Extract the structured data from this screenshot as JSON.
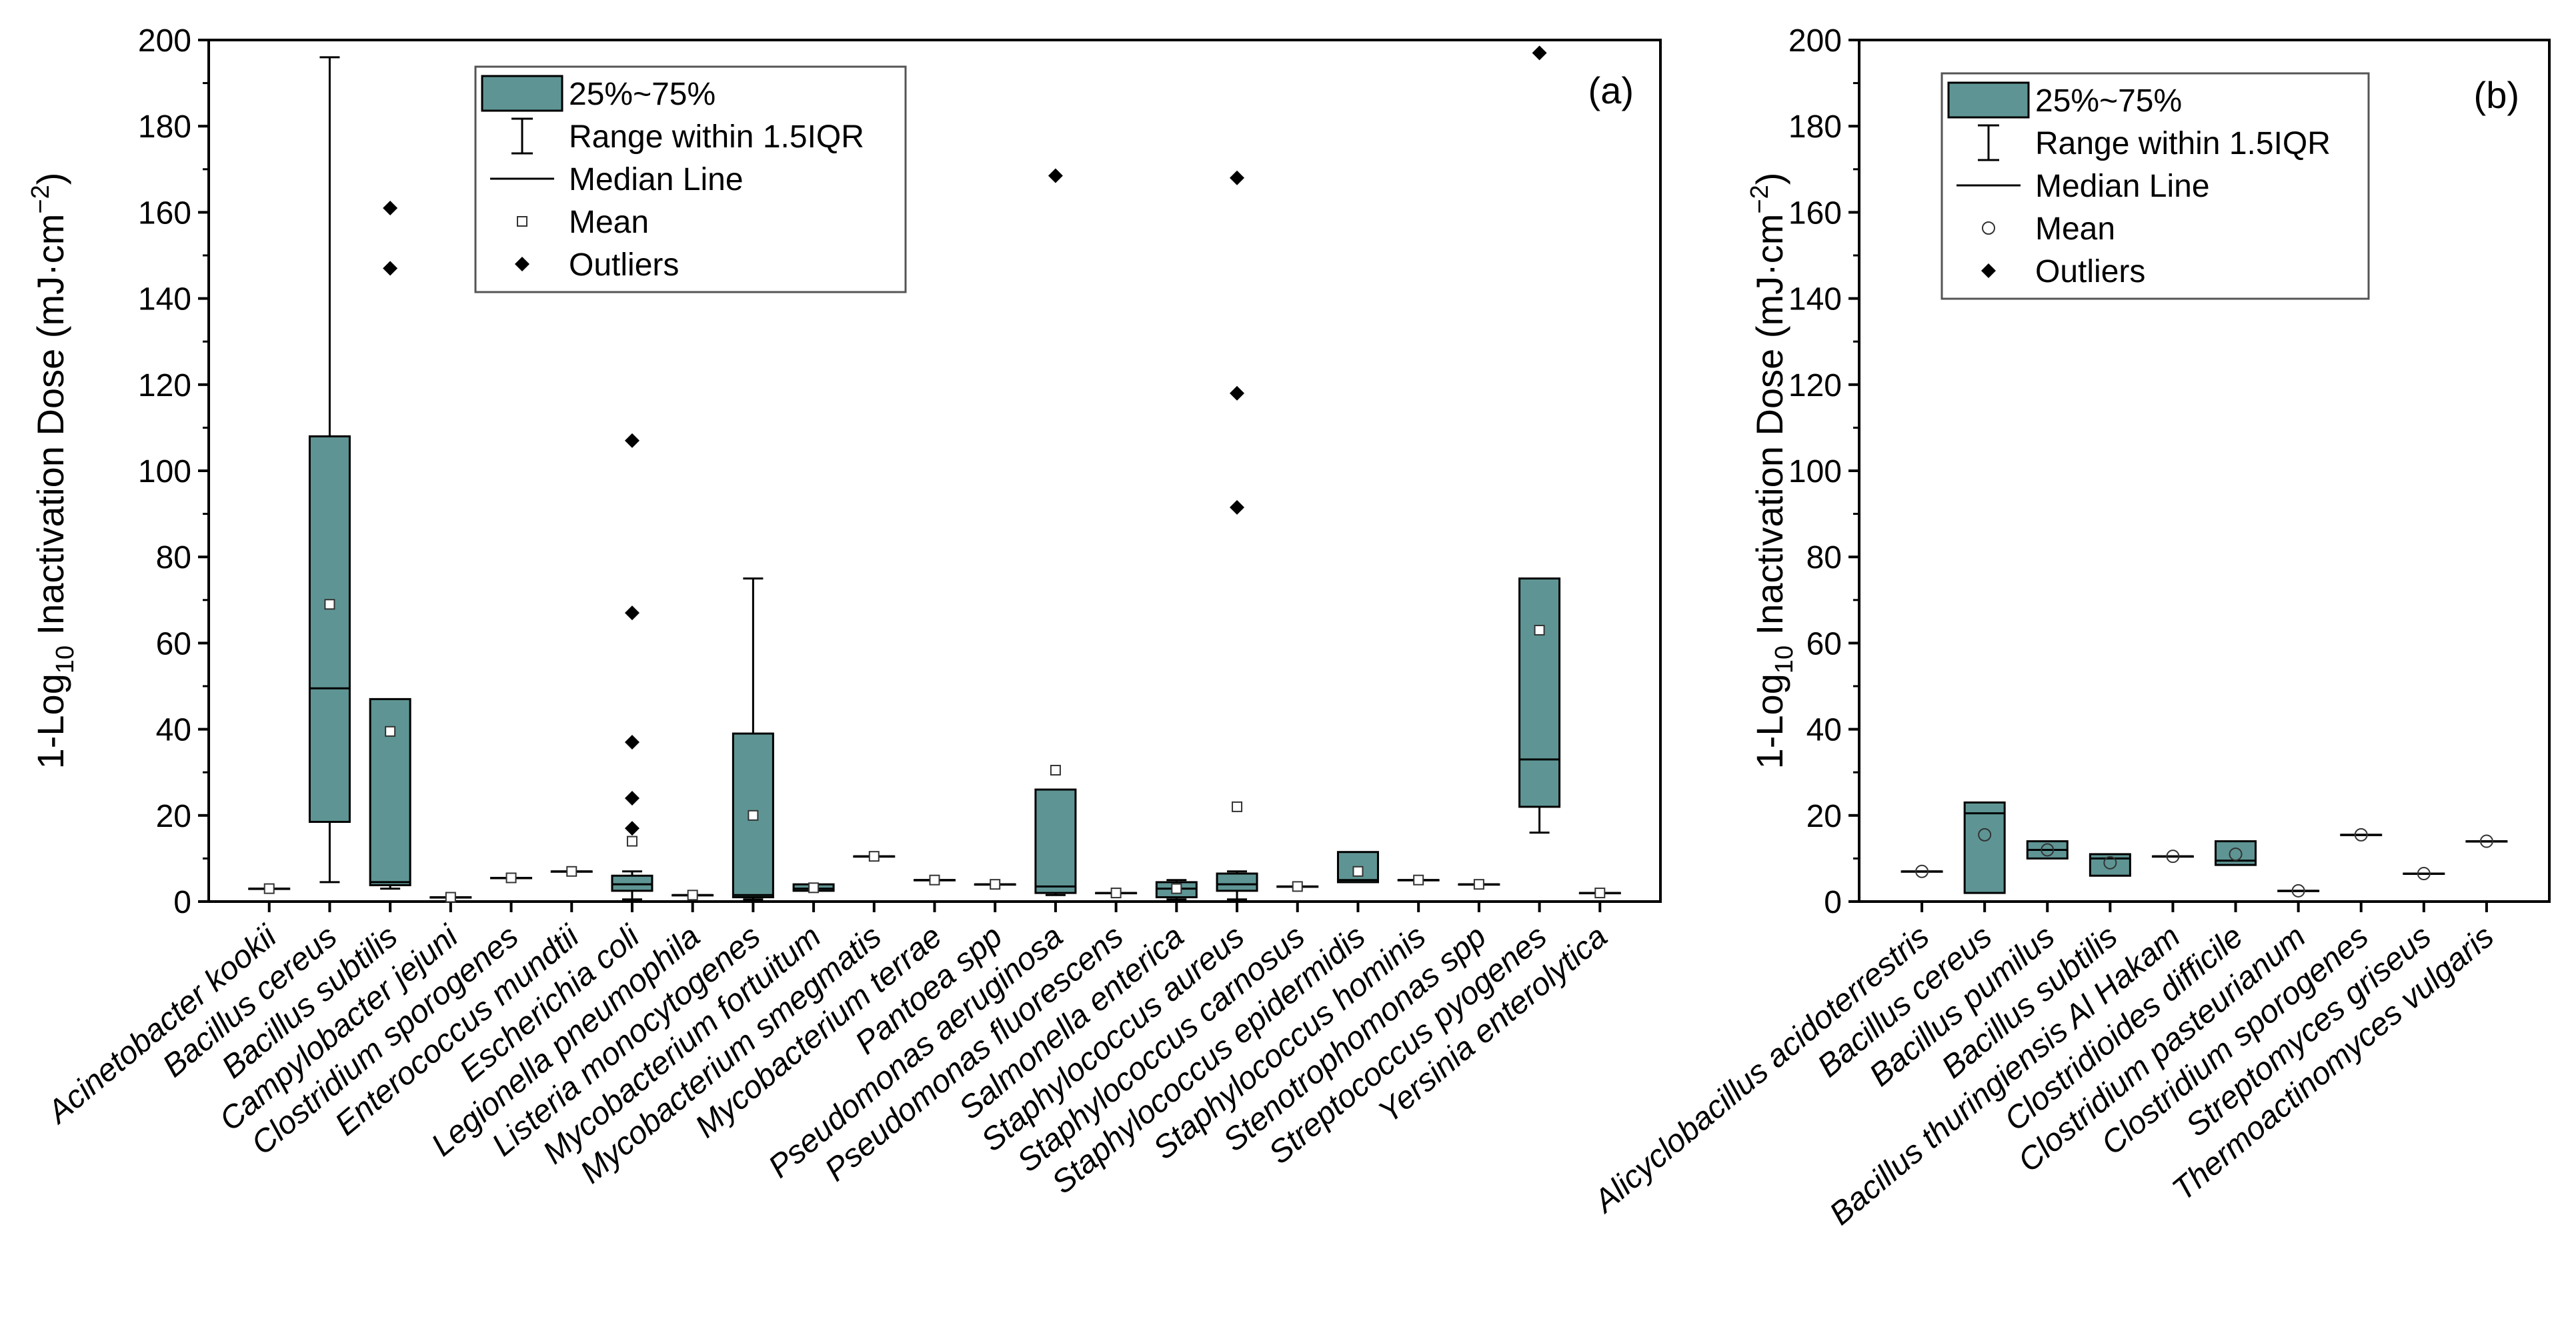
{
  "colors": {
    "box_fill": "#5e9594",
    "box_stroke": "#000000",
    "axis": "#000000",
    "mean_marker_fill": "#ffffff",
    "outlier": "#000000"
  },
  "chart_data": [
    {
      "type": "box",
      "panel_label": "(a)",
      "ylabel_main": "1-Log",
      "ylabel_sub": "10",
      "ylabel_rest": " Inactivation Dose (mJ·cm",
      "ylabel_sup": "−2",
      "ylabel_close": ")",
      "ylim": [
        0,
        200
      ],
      "yticks": [
        0,
        20,
        40,
        60,
        80,
        100,
        120,
        140,
        160,
        180,
        200
      ],
      "mean_marker": "square",
      "n_slots": 24,
      "legend": {
        "box": "25%~75%",
        "whisker": "Range within 1.5IQR",
        "median": "Median Line",
        "mean": "Mean",
        "outliers": "Outliers"
      },
      "categories": [
        "Acinetobacter kookii",
        "Bacillus cereus",
        "Bacillus subtilis",
        "Campylobacter jejuni",
        "Clostridium sporogenes",
        "Enterococcus mundtii",
        "Escherichia coli",
        "Legionella pneumophila",
        "Listeria monocytogenes",
        "Mycobacterium fortuitum",
        "Mycobacterium smegmatis",
        "Mycobacterium terrae",
        "Pantoea spp",
        "Pseudomonas aeruginosa",
        "Pseudomonas fluorescens",
        "Salmonella enterica",
        "Staphylococcus aureus",
        "Staphylococcus carnosus",
        "Staphylococcus epidermidis",
        "Staphylococcus hominis",
        "Stenotrophomonas spp",
        "Streptococcus pyogenes",
        "Yersinia enterolytica"
      ],
      "boxes": [
        {
          "min": 3.0,
          "q1": 3.0,
          "median": 3.0,
          "q3": 3.0,
          "max": 3.0,
          "mean": 3.0,
          "outliers": []
        },
        {
          "min": 4.5,
          "q1": 18.5,
          "median": 49.5,
          "q3": 108,
          "max": 196,
          "mean": 69,
          "outliers": []
        },
        {
          "min": 3.0,
          "q1": 3.8,
          "median": 4.5,
          "q3": 47,
          "max": 47,
          "mean": 39.5,
          "outliers": [
            161,
            147
          ]
        },
        {
          "min": 1.0,
          "q1": 1.0,
          "median": 1.0,
          "q3": 1.0,
          "max": 1.0,
          "mean": 1.0,
          "outliers": []
        },
        {
          "min": 5.5,
          "q1": 5.5,
          "median": 5.5,
          "q3": 5.5,
          "max": 5.5,
          "mean": 5.5,
          "outliers": []
        },
        {
          "min": 7.0,
          "q1": 7.0,
          "median": 7.0,
          "q3": 7.0,
          "max": 7.0,
          "mean": 7.0,
          "outliers": []
        },
        {
          "min": 0.5,
          "q1": 2.5,
          "median": 4.0,
          "q3": 6.0,
          "max": 7.0,
          "mean": 14,
          "outliers": [
            107,
            67,
            37,
            24,
            17
          ]
        },
        {
          "min": 1.5,
          "q1": 1.5,
          "median": 1.5,
          "q3": 1.5,
          "max": 1.5,
          "mean": 1.5,
          "outliers": []
        },
        {
          "min": 0.5,
          "q1": 1.0,
          "median": 1.5,
          "q3": 39,
          "max": 75,
          "mean": 20,
          "outliers": []
        },
        {
          "min": 2.5,
          "q1": 2.5,
          "median": 3.0,
          "q3": 4.0,
          "max": 4.0,
          "mean": 3.2,
          "outliers": []
        },
        {
          "min": 10.5,
          "q1": 10.5,
          "median": 10.5,
          "q3": 10.5,
          "max": 10.5,
          "mean": 10.5,
          "outliers": []
        },
        {
          "min": 5.0,
          "q1": 5.0,
          "median": 5.0,
          "q3": 5.0,
          "max": 5.0,
          "mean": 5.0,
          "outliers": []
        },
        {
          "min": 4.0,
          "q1": 4.0,
          "median": 4.0,
          "q3": 4.0,
          "max": 4.0,
          "mean": 4.0,
          "outliers": []
        },
        {
          "min": 1.5,
          "q1": 2.0,
          "median": 3.5,
          "q3": 26,
          "max": 26,
          "mean": 30.5,
          "outliers": [
            168.5
          ]
        },
        {
          "min": 2.0,
          "q1": 2.0,
          "median": 2.0,
          "q3": 2.0,
          "max": 2.0,
          "mean": 2.0,
          "outliers": []
        },
        {
          "min": 0.5,
          "q1": 1.0,
          "median": 3.0,
          "q3": 4.5,
          "max": 5.0,
          "mean": 3.0,
          "outliers": []
        },
        {
          "min": 0.5,
          "q1": 2.5,
          "median": 4.0,
          "q3": 6.5,
          "max": 7.0,
          "mean": 22,
          "outliers": [
            168,
            118,
            91.5
          ]
        },
        {
          "min": 3.5,
          "q1": 3.5,
          "median": 3.5,
          "q3": 3.5,
          "max": 3.5,
          "mean": 3.5,
          "outliers": []
        },
        {
          "min": 4.5,
          "q1": 4.5,
          "median": 5.0,
          "q3": 11.5,
          "max": 11.5,
          "mean": 7.0,
          "outliers": []
        },
        {
          "min": 5.0,
          "q1": 5.0,
          "median": 5.0,
          "q3": 5.0,
          "max": 5.0,
          "mean": 5.0,
          "outliers": []
        },
        {
          "min": 4.0,
          "q1": 4.0,
          "median": 4.0,
          "q3": 4.0,
          "max": 4.0,
          "mean": 4.0,
          "outliers": []
        },
        {
          "min": 16,
          "q1": 22,
          "median": 33,
          "q3": 75,
          "max": 75,
          "mean": 63,
          "outliers": [
            197
          ]
        },
        {
          "min": 2.0,
          "q1": 2.0,
          "median": 2.0,
          "q3": 2.0,
          "max": 2.0,
          "mean": 2.0,
          "outliers": []
        }
      ]
    },
    {
      "type": "box",
      "panel_label": "(b)",
      "ylabel_main": "1-Log",
      "ylabel_sub": "10",
      "ylabel_rest": " Inactivation Dose (mJ·cm",
      "ylabel_sup": "−2",
      "ylabel_close": ")",
      "ylim": [
        0,
        200
      ],
      "yticks": [
        0,
        20,
        40,
        60,
        80,
        100,
        120,
        140,
        160,
        180,
        200
      ],
      "mean_marker": "circle",
      "n_slots": 11,
      "legend": {
        "box": "25%~75%",
        "whisker": "Range within 1.5IQR",
        "median": "Median Line",
        "mean": "Mean",
        "outliers": "Outliers"
      },
      "categories": [
        "Alicyclobacillus acidoterrestris",
        "Bacillus cereus",
        "Bacillus pumilus",
        "Bacillus subtilis",
        "Bacillus thuringiensis Al Hakam",
        "Clostridioides difficile",
        "Clostridium pasteurianum",
        "Clostridium sporogenes",
        "Streptomyces griseus",
        "Thermoactinomyces vulgaris"
      ],
      "boxes": [
        {
          "min": 7.0,
          "q1": 7.0,
          "median": 7.0,
          "q3": 7.0,
          "max": 7.0,
          "mean": 7.0,
          "outliers": []
        },
        {
          "min": 2.0,
          "q1": 2.0,
          "median": 20.5,
          "q3": 23,
          "max": 23,
          "mean": 15.5,
          "outliers": []
        },
        {
          "min": 10,
          "q1": 10,
          "median": 12,
          "q3": 14,
          "max": 14,
          "mean": 12,
          "outliers": []
        },
        {
          "min": 6.0,
          "q1": 6.0,
          "median": 10,
          "q3": 11,
          "max": 11,
          "mean": 9.0,
          "outliers": []
        },
        {
          "min": 10.5,
          "q1": 10.5,
          "median": 10.5,
          "q3": 10.5,
          "max": 10.5,
          "mean": 10.5,
          "outliers": []
        },
        {
          "min": 8.5,
          "q1": 8.5,
          "median": 9.5,
          "q3": 14,
          "max": 14,
          "mean": 11,
          "outliers": []
        },
        {
          "min": 2.5,
          "q1": 2.5,
          "median": 2.5,
          "q3": 2.5,
          "max": 2.5,
          "mean": 2.5,
          "outliers": []
        },
        {
          "min": 15.5,
          "q1": 15.5,
          "median": 15.5,
          "q3": 15.5,
          "max": 15.5,
          "mean": 15.5,
          "outliers": []
        },
        {
          "min": 6.5,
          "q1": 6.5,
          "median": 6.5,
          "q3": 6.5,
          "max": 6.5,
          "mean": 6.5,
          "outliers": []
        },
        {
          "min": 14,
          "q1": 14,
          "median": 14,
          "q3": 14,
          "max": 14,
          "mean": 14,
          "outliers": []
        }
      ]
    }
  ]
}
